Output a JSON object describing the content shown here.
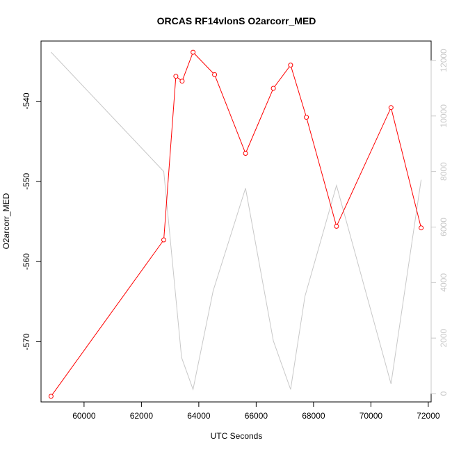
{
  "chart_data": {
    "type": "line",
    "title": "ORCAS RF14vlonS O2arcorr_MED",
    "xlabel": "UTC Seconds",
    "ylabel": "O2arcorr_MED",
    "xlim": [
      58500,
      72100
    ],
    "ylim": [
      -577.5,
      -532.5
    ],
    "y2lim": [
      -300,
      12700
    ],
    "x_ticks": [
      60000,
      62000,
      64000,
      66000,
      68000,
      70000,
      72000
    ],
    "y_ticks": [
      -570,
      -560,
      -550,
      -540
    ],
    "y2_ticks": [
      0,
      2000,
      4000,
      6000,
      8000,
      10000,
      12000
    ],
    "colors": {
      "primary": "#ff0000",
      "secondary": "#c8c8c8",
      "axis": "#000000"
    },
    "series": [
      {
        "role": "primary",
        "color": "#ff0000",
        "axis": "left",
        "markers": true,
        "x": [
          58850,
          62780,
          63200,
          63420,
          63800,
          64550,
          65630,
          66600,
          67200,
          67750,
          68800,
          70700,
          71750
        ],
        "y": [
          -576.8,
          -557.3,
          -536.9,
          -537.5,
          -533.9,
          -536.7,
          -546.5,
          -538.4,
          -535.5,
          -542.0,
          -555.6,
          -540.8,
          -555.8
        ]
      },
      {
        "role": "secondary",
        "color": "#c8c8c8",
        "axis": "right",
        "markers": false,
        "x": [
          58850,
          62780,
          63400,
          63800,
          64500,
          65630,
          66600,
          67200,
          67700,
          68800,
          70700,
          71750
        ],
        "y": [
          12300,
          8000,
          1300,
          150,
          3700,
          7400,
          1900,
          150,
          3500,
          7500,
          350,
          7700
        ]
      }
    ]
  }
}
